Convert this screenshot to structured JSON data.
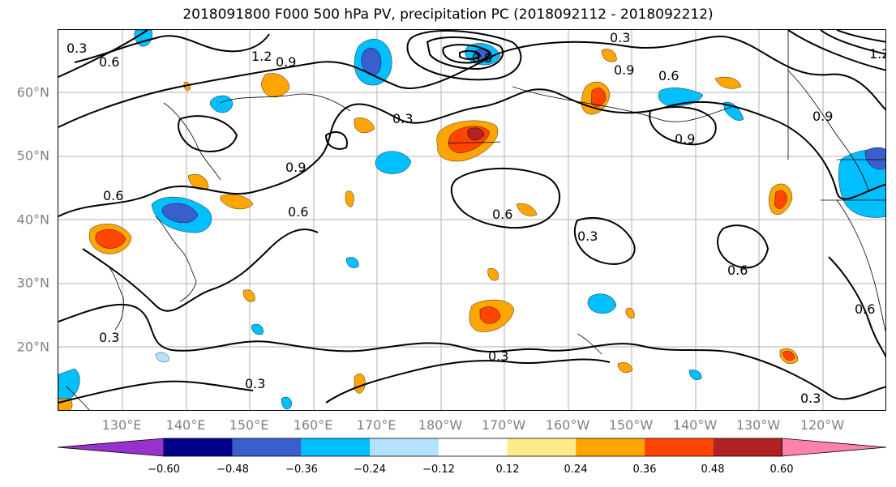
{
  "title": "2018091800 F000 500 hPa PV, precipitation PC (2018092112 - 2018092212)",
  "map": {
    "lat_labels": [
      "60°N",
      "50°N",
      "40°N",
      "30°N",
      "20°N"
    ],
    "lon_labels": [
      "130°E",
      "140°E",
      "150°E",
      "160°E",
      "170°E",
      "180°W",
      "170°W",
      "160°W",
      "150°W",
      "140°W",
      "130°W",
      "120°W"
    ],
    "contour_labels": [
      "0.3",
      "0.6",
      "1.2",
      "0.9",
      "0.3",
      "0.3",
      "0.6",
      "0.9",
      "0.6",
      "0.9",
      "1.2",
      "0.9",
      "0.9",
      "0.6",
      "0.6",
      "0.3",
      "0.6",
      "0.3",
      "0.3",
      "0.3",
      "0.3",
      "0.9",
      "0.6"
    ],
    "colors": {
      "grid": "#b0b0b0",
      "contour": "#000000",
      "axis_label": "#808080"
    }
  },
  "colorbar": {
    "tick_labels": [
      "−0.60",
      "−0.48",
      "−0.36",
      "−0.24",
      "−0.12",
      "0.12",
      "0.24",
      "0.36",
      "0.48",
      "0.60"
    ],
    "colors": [
      "#9932cc",
      "#00008b",
      "#3a5fcd",
      "#00bfff",
      "#b2e2ff",
      "#ffffff",
      "#ffeb8a",
      "#ffa500",
      "#ff4500",
      "#b22222",
      "#ff82ab"
    ]
  }
}
